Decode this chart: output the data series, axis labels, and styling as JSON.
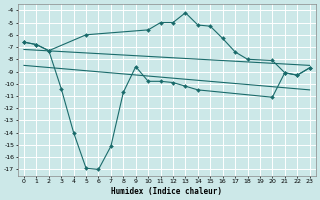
{
  "xlabel": "Humidex (Indice chaleur)",
  "background_color": "#cce8e8",
  "grid_color": "#ffffff",
  "line_color": "#1a6b6b",
  "xlim": [
    -0.5,
    23.5
  ],
  "ylim": [
    -17.5,
    -3.5
  ],
  "yticks": [
    -4,
    -5,
    -6,
    -7,
    -8,
    -9,
    -10,
    -11,
    -12,
    -13,
    -14,
    -15,
    -16,
    -17
  ],
  "xticks": [
    0,
    1,
    2,
    3,
    4,
    5,
    6,
    7,
    8,
    9,
    10,
    11,
    12,
    13,
    14,
    15,
    16,
    17,
    18,
    19,
    20,
    21,
    22,
    23
  ],
  "series": [
    {
      "x": [
        0,
        1,
        2,
        3,
        4,
        5,
        6,
        7,
        8,
        9,
        10,
        11,
        12,
        13,
        14,
        20,
        21,
        22,
        23
      ],
      "y": [
        -6.6,
        -6.8,
        -7.3,
        -10.4,
        -14.0,
        -16.9,
        -17.0,
        -15.1,
        -10.7,
        -8.6,
        -9.8,
        -9.8,
        -9.9,
        -10.2,
        -10.5,
        -11.1,
        -9.1,
        -9.3,
        -8.7
      ],
      "has_markers": true
    },
    {
      "x": [
        0,
        1,
        2,
        5,
        10,
        11,
        12,
        13,
        14,
        15,
        16,
        17,
        18,
        20,
        21,
        22,
        23
      ],
      "y": [
        -6.6,
        -6.8,
        -7.3,
        -6.0,
        -5.6,
        -5.0,
        -5.0,
        -4.2,
        -5.2,
        -5.3,
        -6.3,
        -7.4,
        -8.0,
        -8.1,
        -9.1,
        -9.3,
        -8.7
      ],
      "has_markers": true
    },
    {
      "x": [
        0,
        23
      ],
      "y": [
        -7.2,
        -8.5
      ],
      "has_markers": false
    },
    {
      "x": [
        0,
        23
      ],
      "y": [
        -8.5,
        -10.5
      ],
      "has_markers": false
    }
  ]
}
